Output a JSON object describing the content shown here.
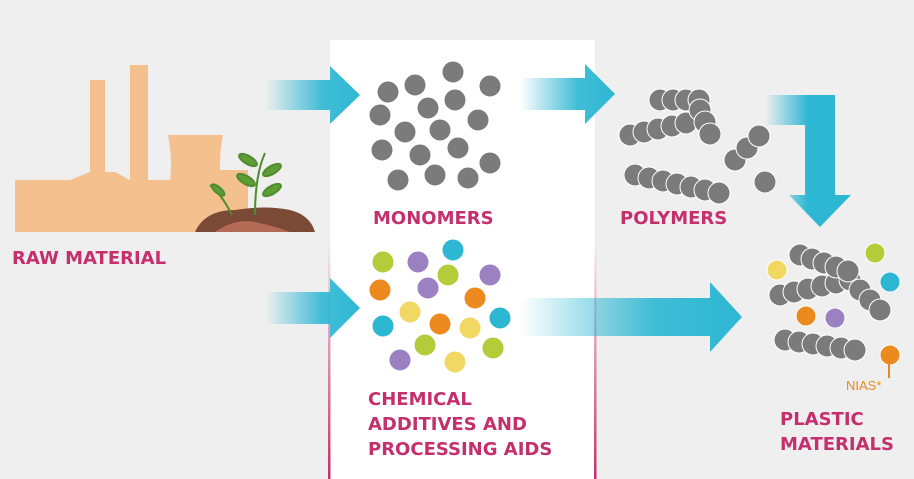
{
  "nodes": [
    {
      "label_lines": [
        "RAW MATERIAL"
      ]
    },
    {
      "label_lines": [
        "MONOMERS"
      ]
    },
    {
      "label_lines": [
        "POLYMERS"
      ]
    },
    {
      "label_lines": [
        "CHEMICAL",
        "ADDITIVES AND",
        "PROCESSING AIDS"
      ]
    },
    {
      "label_lines": [
        "PLASTIC",
        "MATERIALS"
      ]
    }
  ],
  "annotation": "NIAS*"
}
